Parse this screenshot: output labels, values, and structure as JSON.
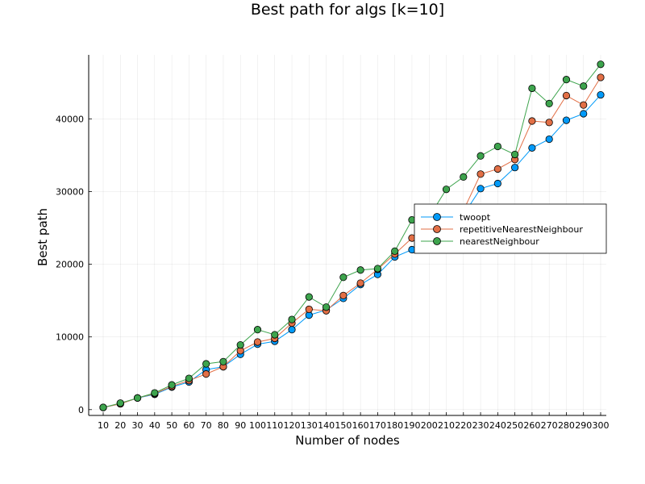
{
  "chart_data": {
    "type": "line",
    "title": "Best path for algs [k=10]",
    "xlabel": "Number of nodes",
    "ylabel": "Best path",
    "categories": [
      "10",
      "20",
      "30",
      "40",
      "50",
      "60",
      "70",
      "80",
      "90",
      "100",
      "110",
      "120",
      "130",
      "140",
      "150",
      "160",
      "170",
      "180",
      "190",
      "200",
      "210",
      "220",
      "230",
      "240",
      "250",
      "260",
      "270",
      "280",
      "290",
      "300"
    ],
    "ylim": [
      -800,
      48800
    ],
    "yticks": [
      0,
      10000,
      20000,
      30000,
      40000
    ],
    "grid": true,
    "legend_position": "right",
    "markers": true,
    "series": [
      {
        "name": "twoopt",
        "color": "#009af9",
        "values": [
          300,
          800,
          1600,
          2100,
          3100,
          3800,
          5500,
          5900,
          7600,
          9000,
          9400,
          11000,
          13000,
          13700,
          15300,
          17200,
          18600,
          21000,
          22000,
          22800,
          24500,
          26800,
          30400,
          31100,
          33300,
          36000,
          37200,
          39800,
          40700,
          43300
        ]
      },
      {
        "name": "repetitiveNearestNeighbour",
        "color": "#e26f46",
        "values": [
          300,
          800,
          1600,
          2200,
          3200,
          4000,
          4900,
          5900,
          8100,
          9300,
          9800,
          11900,
          13800,
          13600,
          15700,
          17400,
          19300,
          21400,
          23600,
          24000,
          25800,
          27400,
          32400,
          33100,
          34400,
          39700,
          39500,
          43200,
          41900,
          45700
        ]
      },
      {
        "name": "nearestNeighbour",
        "color": "#3da44d",
        "values": [
          300,
          900,
          1600,
          2300,
          3400,
          4300,
          6300,
          6600,
          8900,
          11000,
          10300,
          12400,
          15500,
          14100,
          18200,
          19200,
          19400,
          21800,
          26100,
          26500,
          30300,
          32000,
          34900,
          36200,
          35100,
          44200,
          42100,
          45400,
          44500,
          47500
        ]
      }
    ]
  }
}
